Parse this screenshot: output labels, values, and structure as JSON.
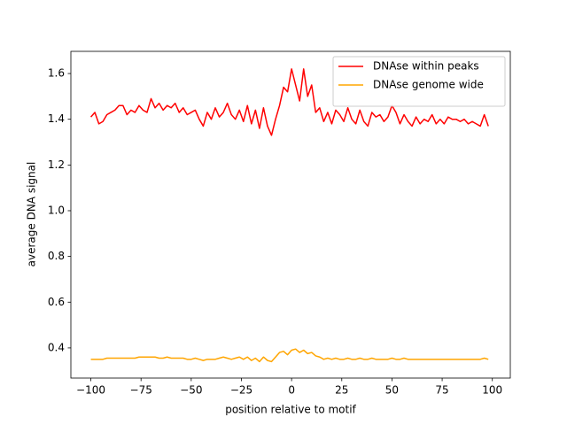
{
  "chart_data": {
    "type": "line",
    "xlabel": "position relative to motif",
    "ylabel": "average DNA signal",
    "x": [
      -100,
      -98,
      -96,
      -94,
      -92,
      -90,
      -88,
      -86,
      -84,
      -82,
      -80,
      -78,
      -76,
      -74,
      -72,
      -70,
      -68,
      -66,
      -64,
      -62,
      -60,
      -58,
      -56,
      -54,
      -52,
      -50,
      -48,
      -46,
      -44,
      -42,
      -40,
      -38,
      -36,
      -34,
      -32,
      -30,
      -28,
      -26,
      -24,
      -22,
      -20,
      -18,
      -16,
      -14,
      -12,
      -10,
      -8,
      -6,
      -4,
      -2,
      0,
      2,
      4,
      6,
      8,
      10,
      12,
      14,
      16,
      18,
      20,
      22,
      24,
      26,
      28,
      30,
      32,
      34,
      36,
      38,
      40,
      42,
      44,
      46,
      48,
      50,
      52,
      54,
      56,
      58,
      60,
      62,
      64,
      66,
      68,
      70,
      72,
      74,
      76,
      78,
      80,
      82,
      84,
      86,
      88,
      90,
      92,
      94,
      96,
      98
    ],
    "series": [
      {
        "name": "DNAse within peaks",
        "color": "#ff0000",
        "values": [
          1.41,
          1.43,
          1.38,
          1.39,
          1.42,
          1.43,
          1.44,
          1.46,
          1.46,
          1.42,
          1.44,
          1.43,
          1.46,
          1.44,
          1.43,
          1.49,
          1.45,
          1.47,
          1.44,
          1.46,
          1.45,
          1.47,
          1.43,
          1.45,
          1.42,
          1.43,
          1.44,
          1.4,
          1.37,
          1.43,
          1.4,
          1.45,
          1.41,
          1.43,
          1.47,
          1.42,
          1.4,
          1.44,
          1.39,
          1.46,
          1.38,
          1.44,
          1.36,
          1.45,
          1.37,
          1.33,
          1.4,
          1.46,
          1.54,
          1.52,
          1.62,
          1.55,
          1.48,
          1.62,
          1.5,
          1.55,
          1.43,
          1.45,
          1.39,
          1.43,
          1.38,
          1.44,
          1.42,
          1.39,
          1.45,
          1.4,
          1.38,
          1.44,
          1.39,
          1.37,
          1.43,
          1.41,
          1.42,
          1.39,
          1.41,
          1.46,
          1.43,
          1.38,
          1.42,
          1.39,
          1.37,
          1.41,
          1.38,
          1.4,
          1.39,
          1.42,
          1.38,
          1.4,
          1.38,
          1.41,
          1.4,
          1.4,
          1.39,
          1.4,
          1.38,
          1.39,
          1.38,
          1.37,
          1.42,
          1.37
        ]
      },
      {
        "name": "DNAse genome wide",
        "color": "#ffa500",
        "values": [
          0.35,
          0.35,
          0.35,
          0.35,
          0.355,
          0.355,
          0.355,
          0.355,
          0.355,
          0.355,
          0.355,
          0.355,
          0.36,
          0.36,
          0.36,
          0.36,
          0.36,
          0.355,
          0.355,
          0.36,
          0.355,
          0.355,
          0.355,
          0.355,
          0.35,
          0.35,
          0.355,
          0.35,
          0.345,
          0.35,
          0.35,
          0.35,
          0.355,
          0.36,
          0.355,
          0.35,
          0.355,
          0.36,
          0.35,
          0.36,
          0.345,
          0.355,
          0.34,
          0.36,
          0.345,
          0.34,
          0.36,
          0.38,
          0.385,
          0.37,
          0.39,
          0.395,
          0.38,
          0.39,
          0.375,
          0.38,
          0.365,
          0.36,
          0.35,
          0.355,
          0.35,
          0.355,
          0.35,
          0.35,
          0.355,
          0.35,
          0.35,
          0.355,
          0.35,
          0.35,
          0.355,
          0.35,
          0.35,
          0.35,
          0.35,
          0.355,
          0.35,
          0.35,
          0.355,
          0.35,
          0.35,
          0.35,
          0.35,
          0.35,
          0.35,
          0.35,
          0.35,
          0.35,
          0.35,
          0.35,
          0.35,
          0.35,
          0.35,
          0.35,
          0.35,
          0.35,
          0.35,
          0.35,
          0.355,
          0.35
        ]
      }
    ],
    "xlim": [
      -109.95,
      108.95
    ],
    "xticks": [
      {
        "value": -100,
        "label": "−100"
      },
      {
        "value": -75,
        "label": "−75"
      },
      {
        "value": -50,
        "label": "−50"
      },
      {
        "value": -25,
        "label": "−25"
      },
      0,
      25,
      50,
      75,
      100
    ],
    "ylim": [
      0.268,
      1.697
    ],
    "yticks": [
      0.4,
      0.6,
      0.8,
      {
        "value": 1,
        "label": "1.0"
      },
      1.2,
      1.4,
      1.6
    ],
    "legend": "upper right"
  }
}
